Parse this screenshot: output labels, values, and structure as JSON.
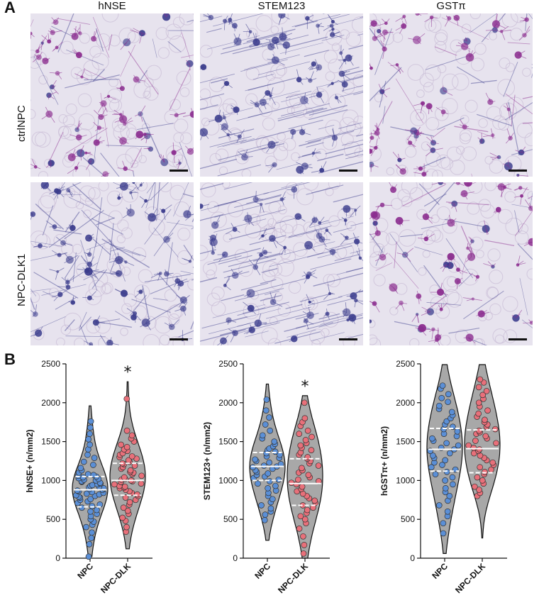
{
  "figure": {
    "panel_a_letter": "A",
    "panel_b_letter": "B",
    "columns": [
      "hNSE",
      "STEM123",
      "GSTπ"
    ],
    "rows": [
      "ctrlNPC",
      "NPC-DLK1"
    ]
  },
  "colors": {
    "npc_points": "#5b8fd6",
    "dlk_points": "#e8707a",
    "violin_fill": "#a8a8a8",
    "stain_bg": "#e7e3ee",
    "stain_purple": "#8a2b8e",
    "stain_blue": "#3a3b8c"
  },
  "micrographs": [
    {
      "row": "ctrlNPC",
      "column": "hNSE",
      "tone": "magenta",
      "scalebar": true
    },
    {
      "row": "ctrlNPC",
      "column": "STEM123",
      "tone": "blue-purple",
      "scalebar": true
    },
    {
      "row": "ctrlNPC",
      "column": "GSTπ",
      "tone": "magenta",
      "scalebar": true
    },
    {
      "row": "NPC-DLK1",
      "column": "hNSE",
      "tone": "blue-purple",
      "scalebar": true
    },
    {
      "row": "NPC-DLK1",
      "column": "STEM123",
      "tone": "blue-purple",
      "scalebar": true
    },
    {
      "row": "NPC-DLK1",
      "column": "GSTπ",
      "tone": "magenta",
      "scalebar": true
    }
  ],
  "chart_data": [
    {
      "type": "violin",
      "ylabel": "hNSE+ (n/mm2)",
      "ylim": [
        0,
        2500
      ],
      "yticks": [
        0,
        500,
        1000,
        1500,
        2000,
        2500
      ],
      "categories": [
        "NPC",
        "NPC-DLK"
      ],
      "significance": {
        "category": "NPC-DLK",
        "marker": "*"
      },
      "series": [
        {
          "category": "NPC",
          "min": 20,
          "q1": 660,
          "median": 880,
          "q3": 1050,
          "max": 1960,
          "values": [
            20,
            180,
            260,
            330,
            400,
            430,
            470,
            500,
            540,
            570,
            600,
            620,
            650,
            670,
            690,
            710,
            730,
            750,
            760,
            780,
            790,
            800,
            810,
            820,
            830,
            840,
            850,
            860,
            870,
            880,
            890,
            900,
            910,
            920,
            930,
            940,
            950,
            960,
            970,
            980,
            990,
            1000,
            1010,
            1020,
            1030,
            1040,
            1050,
            1060,
            1070,
            1080,
            1100,
            1130,
            1160,
            1200,
            1240,
            1290,
            1330,
            1400,
            1460,
            1530,
            1600,
            1680,
            1760
          ]
        },
        {
          "category": "NPC-DLK",
          "min": 120,
          "q1": 810,
          "median": 1000,
          "q3": 1220,
          "max": 2270,
          "values": [
            340,
            400,
            480,
            520,
            570,
            610,
            650,
            690,
            720,
            750,
            780,
            800,
            820,
            840,
            860,
            880,
            900,
            910,
            920,
            930,
            950,
            960,
            980,
            990,
            1000,
            1010,
            1020,
            1040,
            1060,
            1080,
            1100,
            1110,
            1130,
            1150,
            1170,
            1190,
            1210,
            1220,
            1240,
            1260,
            1280,
            1300,
            1310,
            1330,
            1350,
            1380,
            1400,
            1430,
            1460,
            1500,
            1540,
            1580,
            1640,
            2050
          ]
        }
      ]
    },
    {
      "type": "violin",
      "ylabel": "STEM123+ (n/mm2)",
      "ylim": [
        0,
        2500
      ],
      "yticks": [
        0,
        500,
        1000,
        1500,
        2000,
        2500
      ],
      "categories": [
        "NPC",
        "NPC-DLK"
      ],
      "significance": {
        "category": "NPC-DLK",
        "marker": "*"
      },
      "series": [
        {
          "category": "NPC",
          "min": 230,
          "q1": 1000,
          "median": 1180,
          "q3": 1360,
          "max": 2240,
          "values": [
            490,
            560,
            600,
            640,
            680,
            720,
            760,
            800,
            840,
            870,
            900,
            930,
            960,
            990,
            1010,
            1030,
            1050,
            1070,
            1090,
            1110,
            1130,
            1150,
            1170,
            1180,
            1190,
            1210,
            1230,
            1250,
            1270,
            1290,
            1310,
            1330,
            1350,
            1370,
            1390,
            1410,
            1440,
            1470,
            1500,
            1540,
            1580,
            1640,
            1720,
            1810,
            1900,
            2040
          ]
        },
        {
          "category": "NPC-DLK",
          "min": 0,
          "q1": 680,
          "median": 960,
          "q3": 1280,
          "max": 2090,
          "values": [
            60,
            170,
            280,
            380,
            450,
            500,
            540,
            580,
            620,
            650,
            680,
            710,
            740,
            770,
            800,
            830,
            860,
            890,
            920,
            950,
            970,
            990,
            1010,
            1040,
            1070,
            1100,
            1130,
            1160,
            1190,
            1220,
            1250,
            1280,
            1300,
            1330,
            1360,
            1390,
            1420,
            1450,
            1480,
            1520,
            1560,
            1600,
            1640,
            1700,
            1750,
            1800,
            2000
          ]
        }
      ]
    },
    {
      "type": "violin",
      "ylabel": "hGSTπ+ (n/mm2)",
      "ylim": [
        0,
        2500
      ],
      "yticks": [
        0,
        500,
        1000,
        1500,
        2000,
        2500
      ],
      "categories": [
        "NPC",
        "NPC-DLK"
      ],
      "significance": null,
      "series": [
        {
          "category": "NPC",
          "min": 60,
          "q1": 1120,
          "median": 1400,
          "q3": 1670,
          "max": 2490,
          "values": [
            320,
            450,
            540,
            600,
            680,
            740,
            800,
            850,
            900,
            950,
            1000,
            1040,
            1080,
            1110,
            1140,
            1170,
            1200,
            1230,
            1260,
            1290,
            1320,
            1350,
            1380,
            1400,
            1420,
            1450,
            1480,
            1510,
            1540,
            1570,
            1600,
            1630,
            1660,
            1690,
            1720,
            1760,
            1800,
            1840,
            1880,
            1920,
            1960,
            2010,
            2060,
            2110,
            2180,
            2220
          ]
        },
        {
          "category": "NPC-DLK",
          "min": 260,
          "q1": 1100,
          "median": 1410,
          "q3": 1650,
          "max": 2490,
          "values": [
            800,
            840,
            880,
            920,
            960,
            1000,
            1040,
            1080,
            1110,
            1140,
            1170,
            1200,
            1230,
            1260,
            1290,
            1320,
            1350,
            1380,
            1400,
            1420,
            1450,
            1480,
            1510,
            1540,
            1570,
            1600,
            1620,
            1640,
            1660,
            1690,
            1720,
            1750,
            1780,
            1820,
            1860,
            1900,
            1950,
            2000,
            2050,
            2100,
            2150,
            2200,
            2260,
            2300
          ]
        }
      ]
    }
  ]
}
